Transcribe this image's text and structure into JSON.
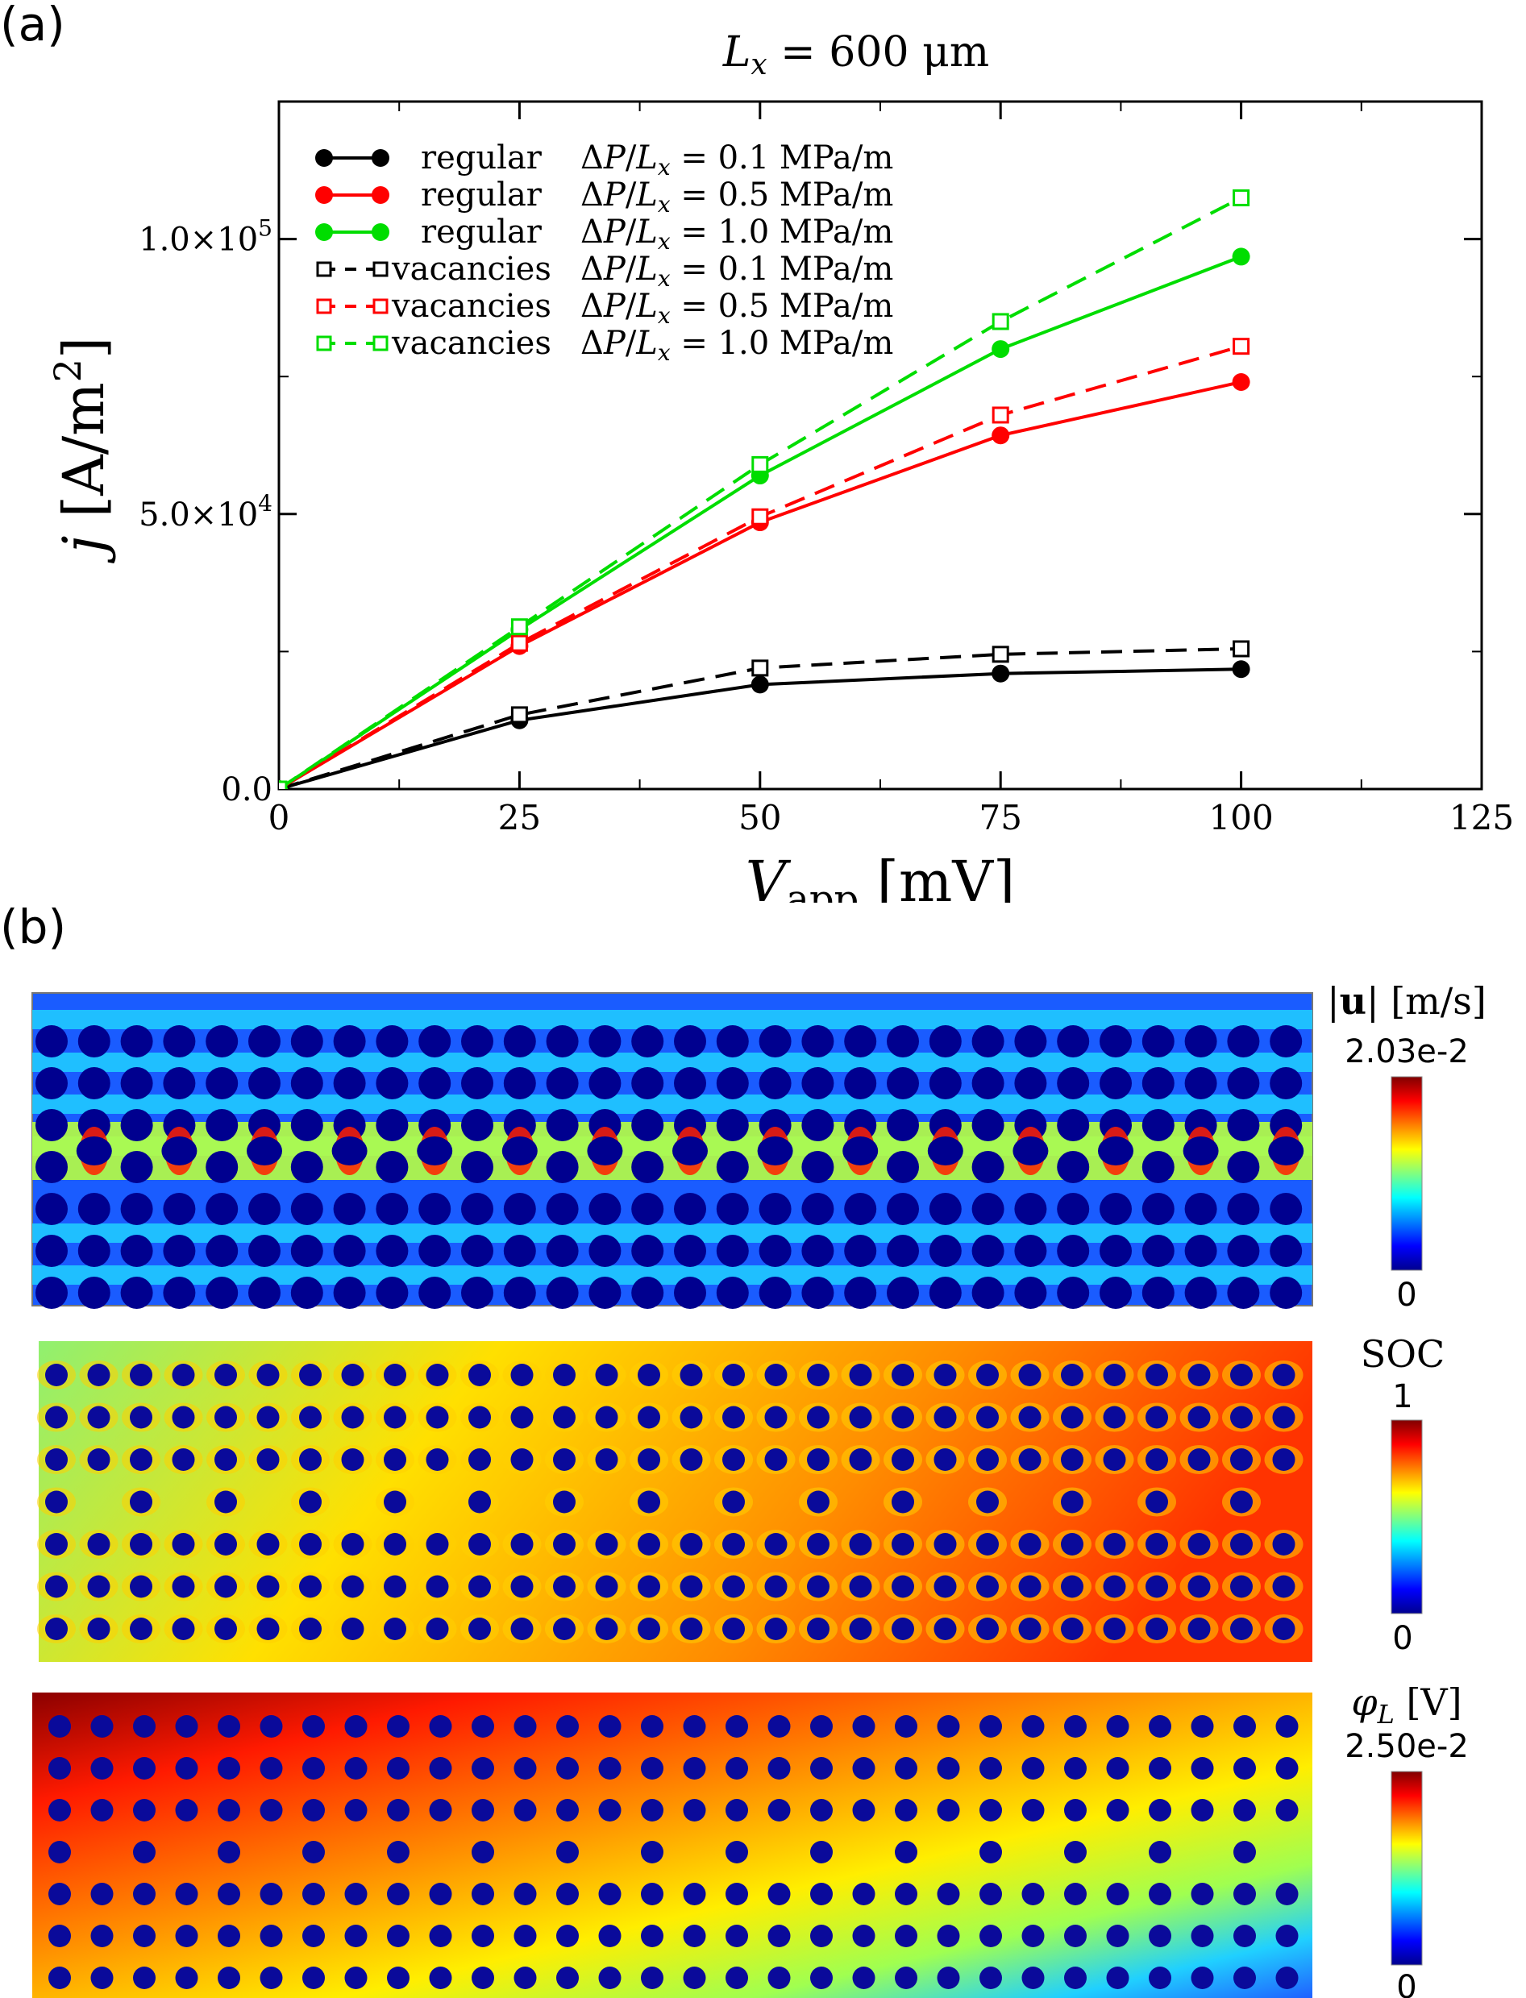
{
  "panel_labels": {
    "a": "(a)",
    "b": "(b)"
  },
  "chart_data": {
    "type": "line",
    "title": "L_x = 600 μm",
    "title_parts": {
      "var": "L",
      "sub": "x",
      "rest": " = 600 μm"
    },
    "xlabel": "V_app [mV]",
    "xlabel_parts": {
      "var": "V",
      "sub": "app",
      "rest": " [mV]"
    },
    "ylabel": "j [A/m²]",
    "ylabel_parts": {
      "var": "j",
      "rest": " [A/m",
      "sup": "2",
      "end": "]"
    },
    "xlim": [
      0,
      125
    ],
    "ylim": [
      0,
      125000
    ],
    "xticks": [
      0,
      25,
      50,
      75,
      100,
      125
    ],
    "yticks": [
      0,
      50000,
      100000
    ],
    "ytick_labels": [
      {
        "mant": "0.0",
        "exp": ""
      },
      {
        "mant": "5.0×10",
        "exp": "4"
      },
      {
        "mant": "1.0×10",
        "exp": "5"
      }
    ],
    "x": [
      0,
      25,
      50,
      75,
      100
    ],
    "series": [
      {
        "name": "regular  ΔP/L_x = 0.1 MPa/m",
        "kind": "regular",
        "dp": "0.1",
        "color": "#000000",
        "marker": "circle",
        "dash": false,
        "values": [
          0,
          12500,
          19000,
          21000,
          21800
        ]
      },
      {
        "name": "regular  ΔP/L_x = 0.5 MPa/m",
        "kind": "regular",
        "dp": "0.5",
        "color": "#ff0000",
        "marker": "circle",
        "dash": false,
        "values": [
          0,
          26000,
          48500,
          64300,
          74000
        ]
      },
      {
        "name": "regular  ΔP/L_x = 1.0 MPa/m",
        "kind": "regular",
        "dp": "1.0",
        "color": "#00dd00",
        "marker": "circle",
        "dash": false,
        "values": [
          0,
          29000,
          57000,
          80000,
          96800
        ]
      },
      {
        "name": "vacancies ΔP/L_x = 0.1 MPa/m",
        "kind": "vacancies",
        "dp": "0.1",
        "color": "#000000",
        "marker": "square",
        "dash": true,
        "values": [
          0,
          13500,
          22000,
          24500,
          25500
        ]
      },
      {
        "name": "vacancies ΔP/L_x = 0.5 MPa/m",
        "kind": "vacancies",
        "dp": "0.5",
        "color": "#ff0000",
        "marker": "square",
        "dash": true,
        "values": [
          0,
          26500,
          49500,
          68000,
          80500
        ]
      },
      {
        "name": "vacancies ΔP/L_x = 1.0 MPa/m",
        "kind": "vacancies",
        "dp": "1.0",
        "color": "#00dd00",
        "marker": "square",
        "dash": true,
        "values": [
          0,
          29500,
          59000,
          85000,
          107500
        ]
      }
    ],
    "legend_placement": "top-left",
    "legend_unit": "MPa/m"
  },
  "colorbars": [
    {
      "id": "velocity",
      "label": "|u| [m/s]",
      "label_parts": {
        "pre": "|",
        "bold": "u",
        "post": "| [m/s]"
      },
      "max": "2.03e-2",
      "min": "0"
    },
    {
      "id": "soc",
      "label": "SOC",
      "max": "1",
      "min": "0"
    },
    {
      "id": "potential",
      "label": "φ_L [V]",
      "label_parts": {
        "var": "φ",
        "sub": "L",
        "rest": " [V]"
      },
      "max": "2.50e-2",
      "min": "0"
    }
  ],
  "colors": {
    "jet_low": "#00008f",
    "jet_high": "#800000",
    "obstacle": "#00008b"
  }
}
